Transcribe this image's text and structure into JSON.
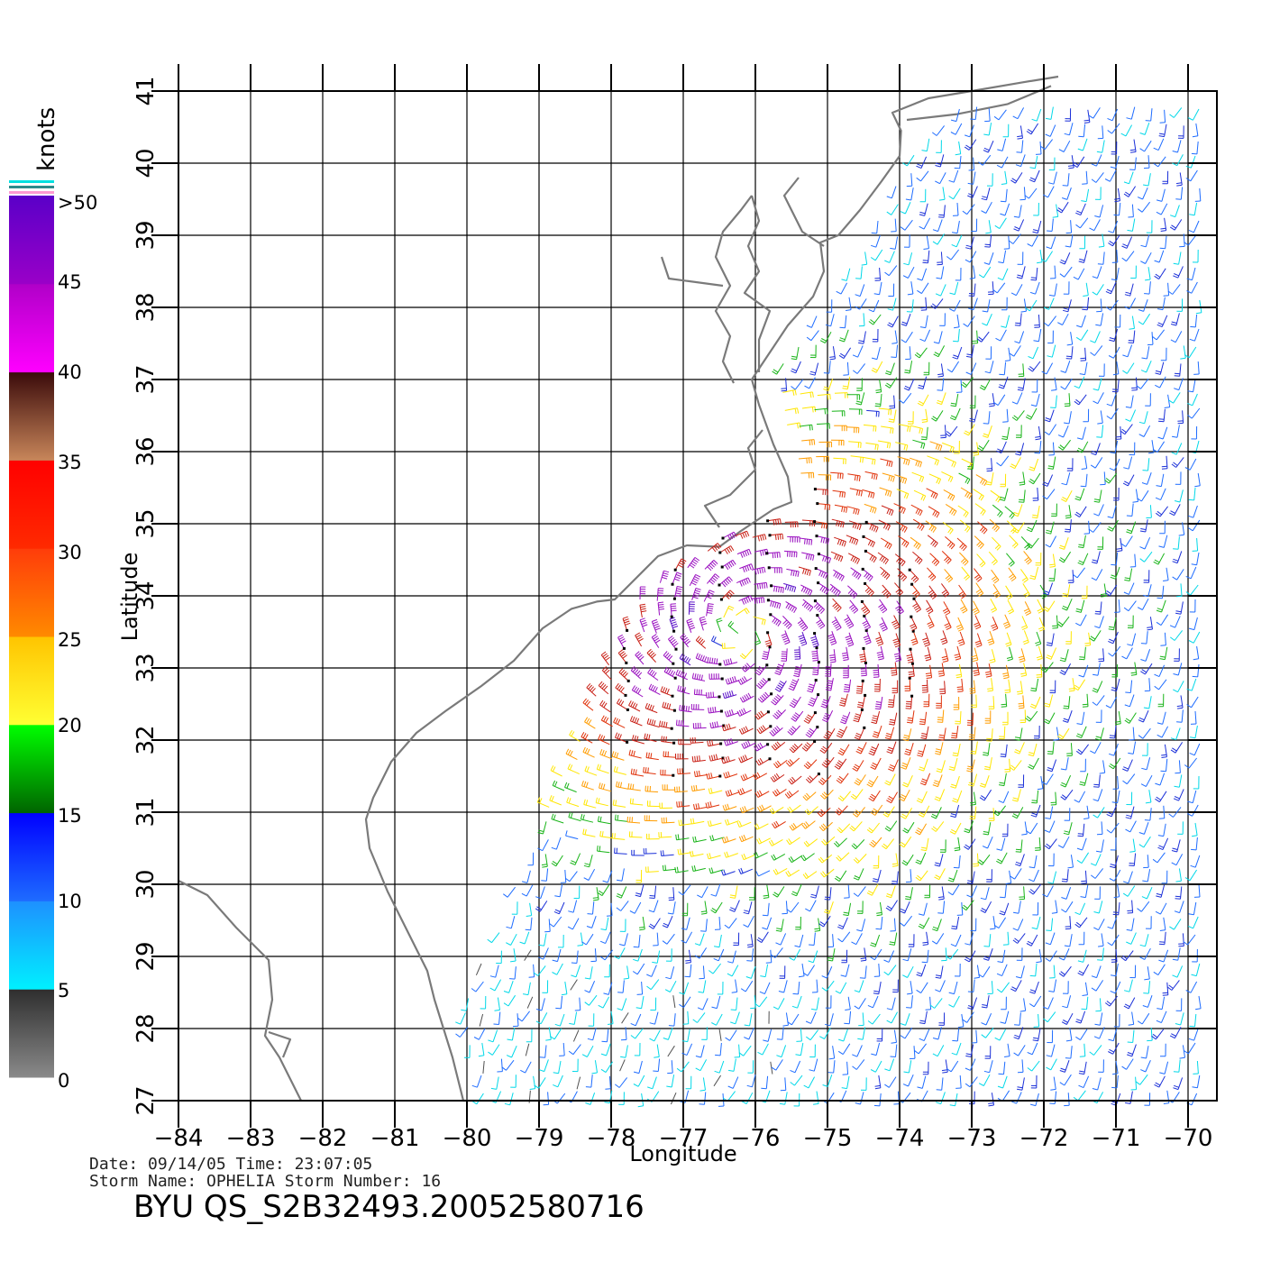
{
  "map": {
    "x_axis": {
      "title": "Longitude",
      "min": -84,
      "max": -70,
      "ticks": [
        "−84",
        "−83",
        "−82",
        "−81",
        "−80",
        "−79",
        "−78",
        "−77",
        "−76",
        "−75",
        "−74",
        "−73",
        "−72",
        "−71",
        "−70"
      ]
    },
    "y_axis": {
      "title": "Latitude",
      "min": 27,
      "max": 41,
      "ticks": [
        "27",
        "28",
        "29",
        "30",
        "31",
        "32",
        "33",
        "34",
        "35",
        "36",
        "37",
        "38",
        "39",
        "40",
        "41"
      ]
    },
    "grid": true,
    "coastline_color": "#7a7a7a",
    "storm_center": {
      "lon": -76.2,
      "lat": 33.5
    }
  },
  "colorbar": {
    "unit": "knots",
    "labels": [
      ">50",
      "45",
      "40",
      "35",
      "30",
      "25",
      "20",
      "15",
      "10",
      "5",
      "0"
    ],
    "bands": [
      {
        "min": 0,
        "max": 5,
        "top": "#2e2e2e",
        "bottom": "#8a8a8a"
      },
      {
        "min": 5,
        "max": 10,
        "top": "#1e90ff",
        "bottom": "#00f0ff"
      },
      {
        "min": 10,
        "max": 15,
        "top": "#0000ff",
        "bottom": "#1e6cff"
      },
      {
        "min": 15,
        "max": 20,
        "top": "#00ff00",
        "bottom": "#006400"
      },
      {
        "min": 20,
        "max": 25,
        "top": "#ffc400",
        "bottom": "#ffff33"
      },
      {
        "min": 25,
        "max": 30,
        "top": "#ff3c0a",
        "bottom": "#ff8a00"
      },
      {
        "min": 30,
        "max": 35,
        "top": "#ff0000",
        "bottom": "#ff2a00"
      },
      {
        "min": 35,
        "max": 40,
        "top": "#3a0a0a",
        "bottom": "#c8865a"
      },
      {
        "min": 40,
        "max": 45,
        "top": "#b000c8",
        "bottom": "#ff00ff"
      },
      {
        "min": 45,
        "max": 50,
        "top": "#5a00c8",
        "bottom": "#9a00c8"
      }
    ],
    "cap_colors": [
      "#ff9ad2",
      "#2e8b8b",
      "#00e0e0"
    ]
  },
  "wind_speed_palette": {
    "0": "#505050",
    "5": "#00d8e8",
    "10": "#1e6cff",
    "15": "#1a2fd8",
    "17": "#18b418",
    "20": "#ffe600",
    "25": "#ff9c00",
    "28": "#e0320a",
    "33": "#c81e14",
    "40": "#9a10c0",
    "50": "#5a10c8"
  },
  "info": {
    "date_line": "Date: 09/14/05   Time: 23:07:05",
    "storm_line": "Storm  Name:  OPHELIA    Storm  Number:  16",
    "product_id": "BYU  QS_S2B32493.20052580716"
  }
}
